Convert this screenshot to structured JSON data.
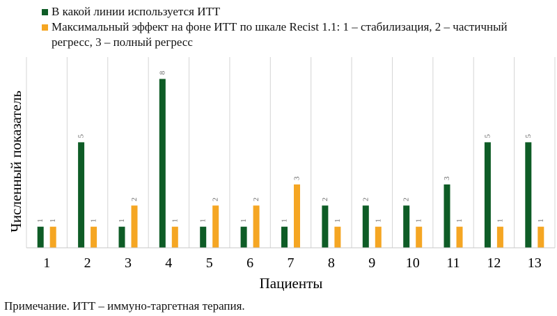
{
  "chart_data": {
    "type": "bar",
    "categories": [
      "1",
      "2",
      "3",
      "4",
      "5",
      "6",
      "7",
      "8",
      "9",
      "10",
      "11",
      "12",
      "13"
    ],
    "series": [
      {
        "name": "В какой линии используется ИТТ",
        "color": "#0e5c26",
        "values": [
          1,
          5,
          1,
          8,
          1,
          1,
          1,
          2,
          2,
          2,
          3,
          5,
          5
        ]
      },
      {
        "name": "Максимальный эффект на фоне ИТТ по шкале Recist 1.1: 1 – стабилизация, 2 – частичный регресс, 3 – полный регресс",
        "color": "#f5a623",
        "values": [
          1,
          1,
          2,
          1,
          2,
          2,
          3,
          1,
          1,
          1,
          1,
          1,
          1
        ]
      }
    ],
    "xlabel": "Пациенты",
    "ylabel": "Численный показатель",
    "ylim": [
      0,
      9
    ],
    "grid": "vertical",
    "legend_position": "top"
  },
  "note": "Примечание. ИТТ – иммуно-таргетная терапия."
}
